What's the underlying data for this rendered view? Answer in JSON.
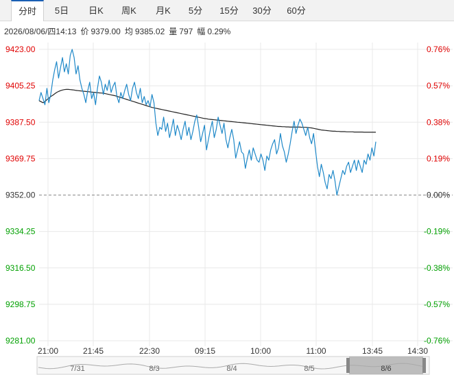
{
  "tabs": [
    {
      "label": "分时",
      "active": true
    },
    {
      "label": "5日"
    },
    {
      "label": "日K"
    },
    {
      "label": "周K"
    },
    {
      "label": "月K"
    },
    {
      "label": "5分"
    },
    {
      "label": "15分"
    },
    {
      "label": "30分"
    },
    {
      "label": "60分"
    }
  ],
  "info": {
    "datetime": "2026/08/06/四14:13",
    "price_label": "价",
    "price": "9379.00",
    "avg_label": "均",
    "avg": "9385.02",
    "volume_label": "量",
    "volume": "797",
    "change_label": "幅",
    "change": "0.29%"
  },
  "colors": {
    "up": "#e00000",
    "down": "#00a000",
    "flat": "#333333",
    "price_line": "#1e88c8",
    "avg_line": "#222222",
    "grid": "#e8e8e8"
  },
  "chart_data": {
    "type": "line",
    "ylim": [
      9281.0,
      9423.0
    ],
    "base": 9352.0,
    "y_ticks_left": [
      "9423.00",
      "9405.25",
      "9387.50",
      "9369.75",
      "9352.00",
      "9334.25",
      "9316.50",
      "9298.75",
      "9281.00"
    ],
    "y_ticks_right": [
      "0.76%",
      "0.57%",
      "0.38%",
      "0.19%",
      "0.00%",
      "-0.19%",
      "-0.38%",
      "-0.57%",
      "-0.76%"
    ],
    "x_ticks": [
      "21:00",
      "21:45",
      "22:30",
      "09:15",
      "10:00",
      "11:00",
      "13:45",
      "14:30"
    ],
    "series": [
      {
        "values": [
          9398,
          9402,
          9399,
          9396,
          9404,
          9397,
          9401,
          9408,
          9413,
          9417,
          9409,
          9414,
          9419,
          9412,
          9416,
          9411,
          9420,
          9423,
          9419,
          9411,
          9415,
          9408,
          9404,
          9401,
          9397,
          9403,
          9407,
          9399,
          9402,
          9396,
          9404,
          9410,
          9407,
          9401,
          9406,
          9403,
          9408,
          9402,
          9405,
          9407,
          9400,
          9397,
          9402,
          9399,
          9403,
          9406,
          9401,
          9398,
          9404,
          9407,
          9402,
          9399,
          9404,
          9397,
          9400,
          9396,
          9398,
          9395,
          9401,
          9397,
          9387,
          9381,
          9385,
          9384,
          9390,
          9383,
          9387,
          9380,
          9384,
          9389,
          9381,
          9386,
          9383,
          9379,
          9384,
          9388,
          9381,
          9385,
          9379,
          9383,
          9388,
          9391,
          9385,
          9378,
          9382,
          9386,
          9374,
          9379,
          9384,
          9388,
          9380,
          9384,
          9390,
          9386,
          9382,
          9387,
          9379,
          9375,
          9380,
          9384,
          9379,
          9370,
          9374,
          9378,
          9373,
          9372,
          9365,
          9370,
          9374,
          9369,
          9375,
          9372,
          9369,
          9368,
          9372,
          9369,
          9364,
          9371,
          9369,
          9374,
          9377,
          9379,
          9372,
          9375,
          9382,
          9376,
          9373,
          9368,
          9372,
          9377,
          9383,
          9388,
          9382,
          9386,
          9389,
          9387,
          9384,
          9381,
          9385,
          9380,
          9377,
          9382,
          9374,
          9366,
          9361,
          9367,
          9363,
          9358,
          9355,
          9362,
          9360,
          9364,
          9359,
          9352,
          9356,
          9360,
          9364,
          9362,
          9366,
          9368,
          9363,
          9366,
          9369,
          9364,
          9369,
          9366,
          9363,
          9369,
          9367,
          9372,
          9369,
          9375,
          9371,
          9378
        ]
      },
      {
        "values": [
          9398,
          9397.5,
          9397,
          9397.5,
          9398.5,
          9399.2,
          9400,
          9400.6,
          9401.3,
          9402,
          9402.5,
          9402.9,
          9403.2,
          9403.4,
          9403.5,
          9403.5,
          9403.4,
          9403.3,
          9403.2,
          9403,
          9402.9,
          9402.8,
          9402.7,
          9402.6,
          9402.5,
          9402.4,
          9402.3,
          9402.2,
          9402.1,
          9402,
          9401.9,
          9401.8,
          9401.7,
          9401.6,
          9401.4,
          9401.2,
          9401,
          9400.8,
          9400.6,
          9400.4,
          9400.1,
          9399.8,
          9399.5,
          9399.2,
          9398.9,
          9398.6,
          9398.3,
          9398,
          9397.7,
          9397.4,
          9397.1,
          9396.8,
          9396.5,
          9396.2,
          9395.9,
          9395.6,
          9395.3,
          9395,
          9394.7,
          9394.5,
          9394.3,
          9394.1,
          9393.9,
          9393.7,
          9393.5,
          9393.3,
          9393.1,
          9392.9,
          9392.7,
          9392.5,
          9392.3,
          9392.1,
          9391.9,
          9391.7,
          9391.5,
          9391.3,
          9391.1,
          9390.9,
          9390.7,
          9390.5,
          9390.3,
          9390.1,
          9389.9,
          9389.7,
          9389.5,
          9389.3,
          9389.2,
          9389,
          9388.9,
          9388.8,
          9388.7,
          9388.6,
          9388.5,
          9388.4,
          9388.3,
          9388.2,
          9388.1,
          9388,
          9387.9,
          9387.8,
          9387.7,
          9387.6,
          9387.5,
          9387.4,
          9387.3,
          9387.2,
          9387.1,
          9387,
          9386.9,
          9386.8,
          9386.7,
          9386.6,
          9386.5,
          9386.4,
          9386.3,
          9386.2,
          9386.1,
          9386,
          9385.9,
          9385.8,
          9385.7,
          9385.6,
          9385.5,
          9385.4,
          9385.4,
          9385.3,
          9385.3,
          9385.2,
          9385.2,
          9385.1,
          9385.1,
          9385.1,
          9385.1,
          9385.1,
          9385.1,
          9385,
          9385,
          9385,
          9384.9,
          9384.8,
          9384.7,
          9384.5,
          9384.3,
          9384.1,
          9383.9,
          9383.7,
          9383.6,
          9383.5,
          9383.4,
          9383.3,
          9383.2,
          9383.1,
          9383.1,
          9383,
          9383,
          9382.9,
          9382.9,
          9382.9,
          9382.8,
          9382.8,
          9382.8,
          9382.8,
          9382.7,
          9382.7,
          9382.7,
          9382.7,
          9382.7,
          9382.6,
          9382.6,
          9382.6,
          9382.6,
          9382.6,
          9382.6,
          9382.6
        ]
      }
    ],
    "navigator": {
      "labels": [
        "7/31",
        "8/3",
        "8/4",
        "8/5",
        "8/6"
      ],
      "selected": "8/6"
    }
  }
}
